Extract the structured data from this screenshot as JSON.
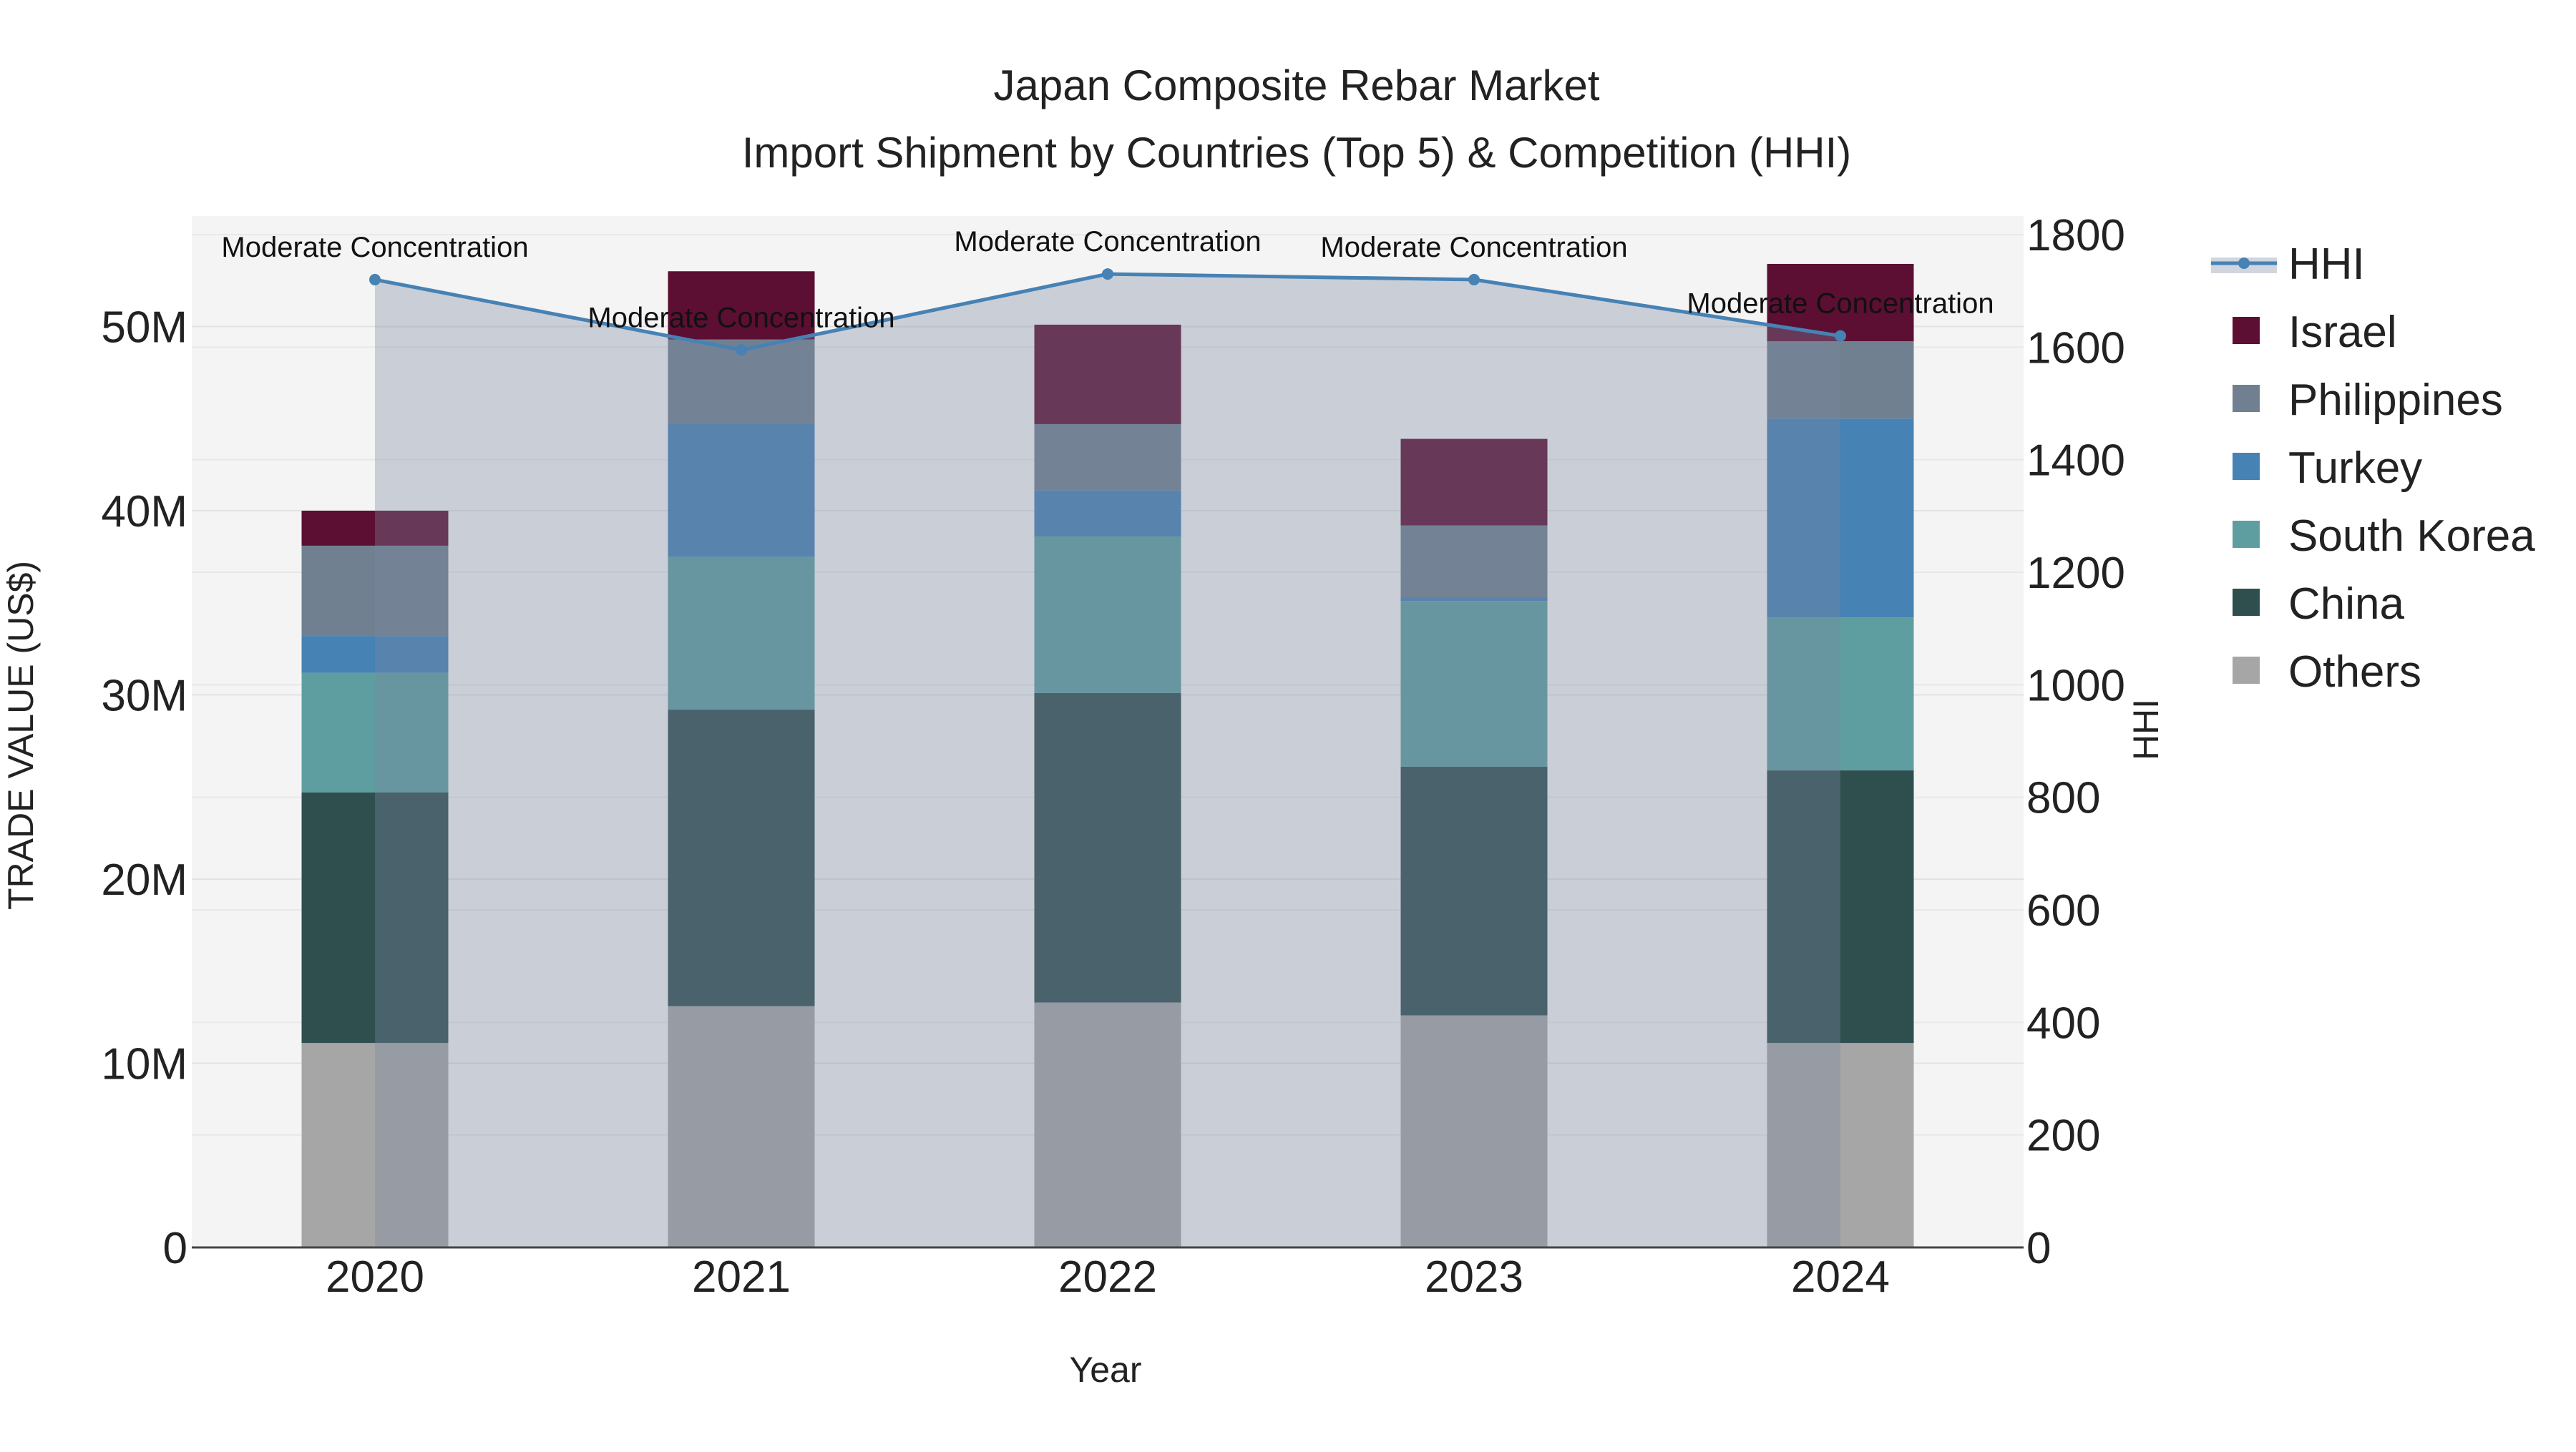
{
  "chart_data": {
    "type": "bar",
    "title": "Japan Composite Rebar Market",
    "subtitle": "Import Shipment by Countries (Top 5) & Competition (HHI)",
    "xlabel": "Year",
    "ylabel": "TRADE VALUE (US$)",
    "y2label": "HHI",
    "categories": [
      "2020",
      "2021",
      "2022",
      "2023",
      "2024"
    ],
    "ylim": [
      0,
      56000000
    ],
    "y2lim": [
      0,
      1800
    ],
    "yticks": [
      {
        "value": 0,
        "label": "0"
      },
      {
        "value": 10000000,
        "label": "10M"
      },
      {
        "value": 20000000,
        "label": "20M"
      },
      {
        "value": 30000000,
        "label": "30M"
      },
      {
        "value": 40000000,
        "label": "40M"
      },
      {
        "value": 50000000,
        "label": "50M"
      }
    ],
    "y2ticks": [
      0,
      200,
      400,
      600,
      800,
      1000,
      1200,
      1400,
      1600,
      1800
    ],
    "series": [
      {
        "name": "Others",
        "color": "#a6a6a6",
        "values": [
          11100000,
          13100000,
          13300000,
          12600000,
          11100000
        ]
      },
      {
        "name": "China",
        "color": "#2f4f4f",
        "values": [
          13600000,
          16100000,
          16800000,
          13500000,
          14800000
        ]
      },
      {
        "name": "South Korea",
        "color": "#5f9ea0",
        "values": [
          6500000,
          8300000,
          8500000,
          9000000,
          8300000
        ]
      },
      {
        "name": "Turkey",
        "color": "#4682b4",
        "values": [
          2000000,
          7200000,
          2500000,
          200000,
          10800000
        ]
      },
      {
        "name": "Philippines",
        "color": "#708090",
        "values": [
          4900000,
          4600000,
          3600000,
          3900000,
          4200000
        ]
      },
      {
        "name": "Israel",
        "color": "#5c0f32",
        "values": [
          1900000,
          3700000,
          5400000,
          4700000,
          4200000
        ]
      }
    ],
    "hhi": {
      "name": "HHI",
      "color": "#4682b4",
      "values": [
        1720,
        1595,
        1730,
        1720,
        1620
      ],
      "annotations": [
        "Moderate Concentration",
        "Moderate Concentration",
        "Moderate Concentration",
        "Moderate Concentration",
        "Moderate Concentration"
      ]
    },
    "legend": [
      "HHI",
      "Israel",
      "Philippines",
      "Turkey",
      "South Korea",
      "China",
      "Others"
    ],
    "legend_position": "right"
  }
}
